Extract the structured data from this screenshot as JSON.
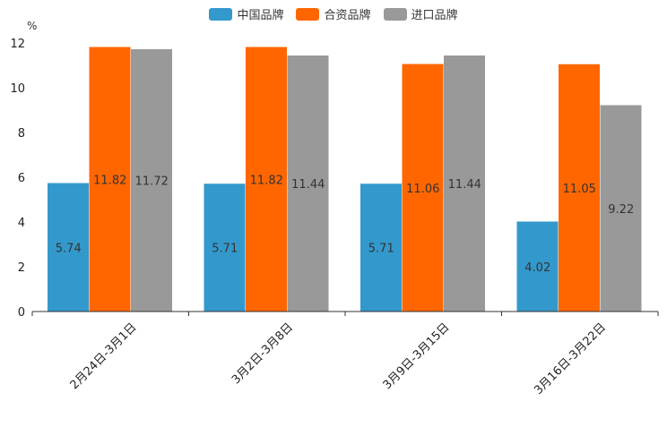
{
  "chart_data": {
    "type": "bar",
    "unit_label": "%",
    "categories": [
      "2月24日-3月1日",
      "3月2日-3月8日",
      "3月9日-3月15日",
      "3月16日-3月22日"
    ],
    "series": [
      {
        "name": "中国品牌",
        "color": "#3399cc",
        "values": [
          5.74,
          5.71,
          5.71,
          4.02
        ]
      },
      {
        "name": "合资品牌",
        "color": "#ff6600",
        "values": [
          11.82,
          11.82,
          11.06,
          11.05
        ]
      },
      {
        "name": "进口品牌",
        "color": "#999999",
        "values": [
          11.72,
          11.44,
          11.44,
          9.22
        ]
      }
    ],
    "ylim": [
      0,
      12
    ],
    "yticks": [
      0,
      2,
      4,
      6,
      8,
      10,
      12
    ],
    "legend_position": "top-center"
  }
}
